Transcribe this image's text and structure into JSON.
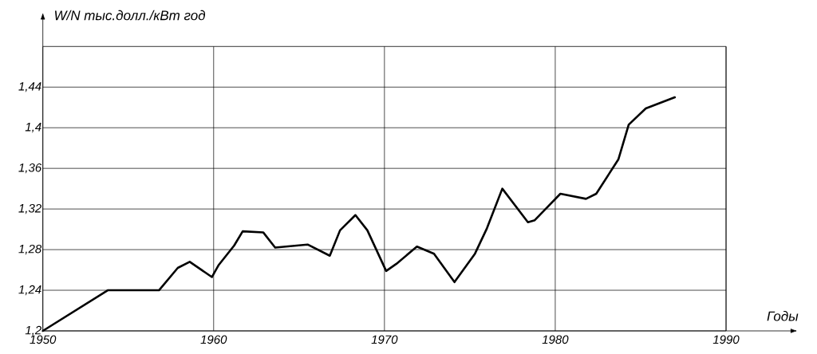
{
  "chart_data": {
    "type": "line",
    "xlabel": "Годы",
    "ylabel": "W/N тыс.долл./кВт год",
    "x": [
      1950,
      1953.8,
      1956.8,
      1957.9,
      1958.6,
      1959.9,
      1960.3,
      1961.2,
      1961.7,
      1962.9,
      1963.6,
      1965.5,
      1966.8,
      1967.4,
      1968.3,
      1969.0,
      1970.1,
      1970.7,
      1971.9,
      1972.9,
      1974.1,
      1975.3,
      1976.0,
      1976.9,
      1978.4,
      1978.8,
      1980.3,
      1981.8,
      1982.4,
      1983.7,
      1984.3,
      1985.3,
      1987.0
    ],
    "series": [
      {
        "color": "#000000",
        "values": [
          1.2,
          1.24,
          1.24,
          1.262,
          1.268,
          1.253,
          1.265,
          1.284,
          1.298,
          1.297,
          1.282,
          1.285,
          1.274,
          1.299,
          1.314,
          1.299,
          1.259,
          1.266,
          1.283,
          1.276,
          1.248,
          1.276,
          1.301,
          1.34,
          1.307,
          1.309,
          1.335,
          1.33,
          1.335,
          1.369,
          1.403,
          1.419,
          1.43
        ]
      }
    ],
    "xlim": [
      1950,
      1990
    ],
    "ylim": [
      1.2,
      1.48
    ],
    "xticks": [
      1950,
      1960,
      1970,
      1980,
      1990
    ],
    "yticks": [
      {
        "value": 1.2,
        "label": "1,2"
      },
      {
        "value": 1.24,
        "label": "1,24"
      },
      {
        "value": 1.28,
        "label": "1,28"
      },
      {
        "value": 1.32,
        "label": "1,32"
      },
      {
        "value": 1.36,
        "label": "1,36"
      },
      {
        "value": 1.4,
        "label": "1,4"
      },
      {
        "value": 1.44,
        "label": "1,44"
      }
    ],
    "grid": true,
    "marker": "none"
  }
}
